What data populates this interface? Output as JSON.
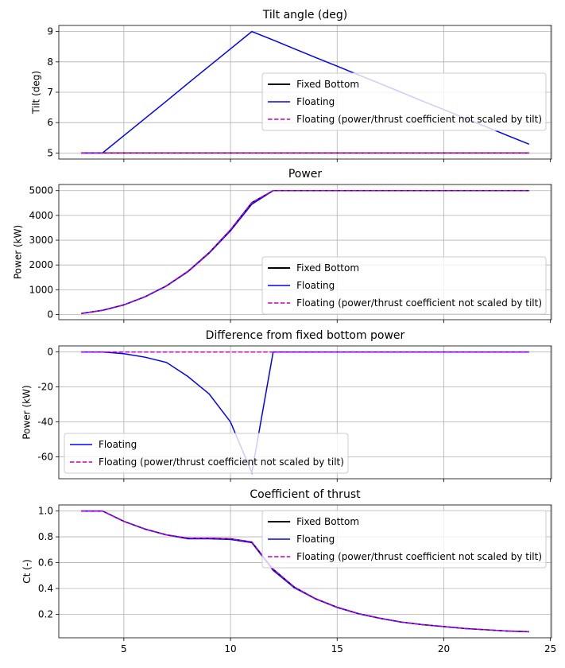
{
  "chart_data": [
    {
      "type": "line",
      "title": "Tilt angle (deg)",
      "y_label": "Tilt (deg)",
      "x": [
        3,
        4,
        5,
        6,
        7,
        8,
        9,
        10,
        11,
        12,
        13,
        14,
        15,
        16,
        17,
        18,
        19,
        20,
        21,
        22,
        23,
        24
      ],
      "series": [
        {
          "name": "Fixed Bottom",
          "color": "#000000",
          "linestyle": "solid",
          "values": [
            5,
            5,
            5,
            5,
            5,
            5,
            5,
            5,
            5,
            5,
            5,
            5,
            5,
            5,
            5,
            5,
            5,
            5,
            5,
            5,
            5,
            5
          ]
        },
        {
          "name": "Floating",
          "color": "#0000ff",
          "linestyle": "solid",
          "values": [
            5,
            5,
            5.57,
            6.14,
            6.71,
            7.29,
            7.86,
            8.43,
            9,
            8.72,
            8.43,
            8.14,
            7.86,
            7.57,
            7.29,
            7.0,
            6.71,
            6.43,
            6.14,
            5.86,
            5.57,
            5.29
          ]
        },
        {
          "name": "Floating (power/thrust coefficient not scaled by tilt)",
          "color": "#bf00bf",
          "linestyle": "dashed",
          "values": [
            5,
            5,
            5,
            5,
            5,
            5,
            5,
            5,
            5,
            5,
            5,
            5,
            5,
            5,
            5,
            5,
            5,
            5,
            5,
            5,
            5,
            5
          ]
        }
      ],
      "xlim": [
        1.95,
        25.05
      ],
      "ylim": [
        4.8,
        9.2
      ],
      "yticks": [
        5,
        6,
        7,
        8,
        9
      ],
      "grid": true,
      "legend": "center right"
    },
    {
      "type": "line",
      "title": "Power",
      "y_label": "Power (kW)",
      "x": [
        3,
        4,
        5,
        6,
        7,
        8,
        9,
        10,
        11,
        12,
        13,
        14,
        15,
        16,
        17,
        18,
        19,
        20,
        21,
        22,
        23,
        24
      ],
      "series": [
        {
          "name": "Fixed Bottom",
          "color": "#000000",
          "linestyle": "solid",
          "values": [
            40,
            170,
            390,
            720,
            1160,
            1740,
            2500,
            3420,
            4520,
            5000,
            5000,
            5000,
            5000,
            5000,
            5000,
            5000,
            5000,
            5000,
            5000,
            5000,
            5000,
            5000
          ]
        },
        {
          "name": "Floating",
          "color": "#0000ff",
          "linestyle": "solid",
          "values": [
            40,
            170,
            389,
            717,
            1154,
            1726,
            2476,
            3380,
            4451,
            5000,
            5000,
            5000,
            5000,
            5000,
            5000,
            5000,
            5000,
            5000,
            5000,
            5000,
            5000,
            5000
          ]
        },
        {
          "name": "Floating (power/thrust coefficient not scaled by tilt)",
          "color": "#bf00bf",
          "linestyle": "dashed",
          "values": [
            40,
            170,
            390,
            720,
            1160,
            1740,
            2500,
            3420,
            4520,
            5000,
            5000,
            5000,
            5000,
            5000,
            5000,
            5000,
            5000,
            5000,
            5000,
            5000,
            5000,
            5000
          ]
        }
      ],
      "xlim": [
        1.95,
        25.05
      ],
      "ylim": [
        -208,
        5248
      ],
      "yticks": [
        0,
        1000,
        2000,
        3000,
        4000,
        5000
      ],
      "grid": true,
      "legend": "lower right"
    },
    {
      "type": "line",
      "title": "Difference from fixed bottom power",
      "y_label": "Power (kW)",
      "x": [
        3,
        4,
        5,
        6,
        7,
        8,
        9,
        10,
        11,
        12,
        13,
        14,
        15,
        16,
        17,
        18,
        19,
        20,
        21,
        22,
        23,
        24
      ],
      "series": [
        {
          "name": "Floating",
          "color": "#0000ff",
          "linestyle": "solid",
          "values": [
            0,
            0,
            -1,
            -3,
            -6,
            -14,
            -24,
            -40,
            -69,
            0,
            0,
            0,
            0,
            0,
            0,
            0,
            0,
            0,
            0,
            0,
            0,
            0
          ]
        },
        {
          "name": "Floating (power/thrust coefficient not scaled by tilt)",
          "color": "#bf00bf",
          "linestyle": "dashed",
          "values": [
            0,
            0,
            0,
            0,
            0,
            0,
            0,
            0,
            0,
            0,
            0,
            0,
            0,
            0,
            0,
            0,
            0,
            0,
            0,
            0,
            0,
            0
          ]
        }
      ],
      "xlim": [
        1.95,
        25.05
      ],
      "ylim": [
        -72.45,
        3.45
      ],
      "yticks": [
        -60,
        -40,
        -20,
        0
      ],
      "grid": true,
      "legend": "lower left"
    },
    {
      "type": "line",
      "title": "Coefficient of thrust",
      "y_label": "Ct (-)",
      "x": [
        3,
        4,
        5,
        6,
        7,
        8,
        9,
        10,
        11,
        12,
        13,
        14,
        15,
        16,
        17,
        18,
        19,
        20,
        21,
        22,
        23,
        24
      ],
      "series": [
        {
          "name": "Fixed Bottom",
          "color": "#000000",
          "linestyle": "solid",
          "values": [
            1.0,
            1.0,
            0.92,
            0.86,
            0.815,
            0.79,
            0.79,
            0.785,
            0.76,
            0.55,
            0.41,
            0.32,
            0.255,
            0.205,
            0.17,
            0.14,
            0.12,
            0.105,
            0.09,
            0.08,
            0.07,
            0.065
          ]
        },
        {
          "name": "Floating",
          "color": "#0000ff",
          "linestyle": "solid",
          "values": [
            1.0,
            1.0,
            0.92,
            0.86,
            0.815,
            0.785,
            0.785,
            0.78,
            0.755,
            0.54,
            0.405,
            0.318,
            0.253,
            0.204,
            0.169,
            0.14,
            0.12,
            0.105,
            0.09,
            0.08,
            0.07,
            0.065
          ]
        },
        {
          "name": "Floating (power/thrust coefficient not scaled by tilt)",
          "color": "#bf00bf",
          "linestyle": "dashed",
          "values": [
            1.0,
            1.0,
            0.92,
            0.86,
            0.815,
            0.79,
            0.79,
            0.785,
            0.76,
            0.55,
            0.41,
            0.32,
            0.255,
            0.205,
            0.17,
            0.14,
            0.12,
            0.105,
            0.09,
            0.08,
            0.07,
            0.065
          ]
        }
      ],
      "xlim": [
        1.95,
        25.05
      ],
      "ylim": [
        0.018,
        1.047
      ],
      "yticks": [
        0.2,
        0.4,
        0.6,
        0.8,
        {
          "value": 1,
          "label": "1.0"
        }
      ],
      "xticks": [
        5,
        10,
        15,
        20,
        25
      ],
      "grid": true,
      "legend": "upper right"
    }
  ]
}
